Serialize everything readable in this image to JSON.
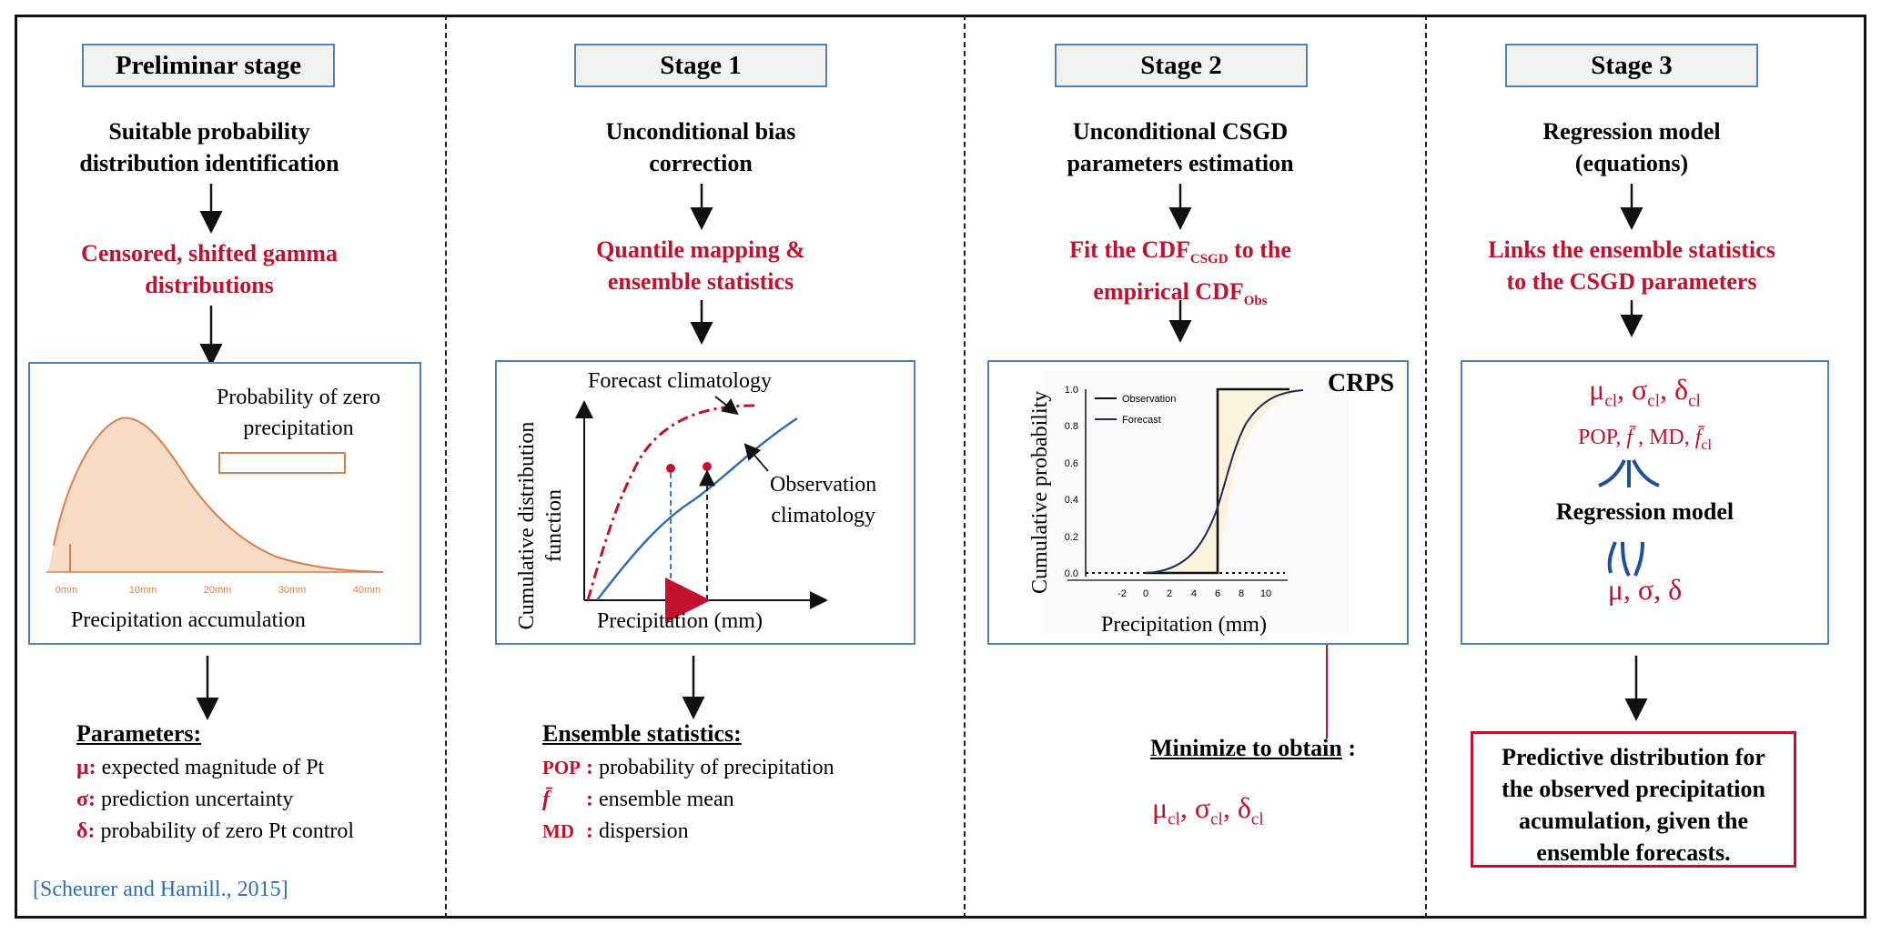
{
  "stages": [
    {
      "title": "Preliminar stage",
      "subtitle_lines": [
        "Suitable probability",
        "distribution identification"
      ],
      "method_lines": [
        "Censored, shifted gamma",
        "distributions"
      ],
      "panel": {
        "annotation_lines": [
          "Probability of zero",
          "precipitation"
        ],
        "tick_labels": [
          "0mm",
          "10mm",
          "20mm",
          "30mm",
          "40mm"
        ],
        "xlabel": "Precipitation accumulation"
      },
      "list_title": "Parameters:",
      "list": [
        {
          "key": "μ:",
          "text": "expected magnitude of Pt"
        },
        {
          "key": "σ:",
          "text": "prediction uncertainty"
        },
        {
          "key": "δ:",
          "text": "probability of zero Pt control"
        }
      ],
      "reference": "[Scheurer and Hamill., 2015]"
    },
    {
      "title": "Stage 1",
      "subtitle_lines": [
        "Unconditional bias",
        "correction"
      ],
      "method_lines": [
        "Quantile mapping &",
        "ensemble statistics"
      ],
      "panel": {
        "forecast_label": "Forecast climatology",
        "observation_label_lines": [
          "Observation",
          "climatology"
        ],
        "ylabel_lines": [
          "Cumulative distribution",
          "function"
        ],
        "xlabel": "Precipitation (mm)"
      },
      "list_title": "Ensemble statistics:",
      "list": [
        {
          "key": "POP",
          "text": "probability of precipitation"
        },
        {
          "key": "f̄",
          "text": "ensemble mean"
        },
        {
          "key": "MD",
          "text": "dispersion"
        }
      ]
    },
    {
      "title": "Stage 2",
      "subtitle_lines": [
        "Unconditional CSGD",
        "parameters estimation"
      ],
      "method_line1": {
        "pre": "Fit the CDF",
        "sub": "CSGD",
        "post": " to the"
      },
      "method_line2": {
        "pre": "empirical CDF",
        "sub": "Obs",
        "post": ""
      },
      "panel": {
        "badge": "CRPS",
        "legend": [
          "Observation",
          "Forecast"
        ],
        "y_ticks": [
          "0.0",
          "0.2",
          "0.4",
          "0.6",
          "0.8",
          "1.0"
        ],
        "x_ticks": [
          "-2",
          "0",
          "2",
          "4",
          "6",
          "8",
          "10"
        ],
        "ylabel": "Cumulative probability",
        "xlabel": "Precipitation (mm)"
      },
      "minimize_label": "Minimize to obtain",
      "minimize_colon": ":",
      "result_params": [
        "μ",
        "cl",
        "σ",
        "cl",
        "δ",
        "cl"
      ]
    },
    {
      "title": "Stage 3",
      "subtitle_lines": [
        "Regression model",
        "(equations)"
      ],
      "method_lines": [
        "Links the ensemble statistics",
        "to the CSGD parameters"
      ],
      "panel": {
        "climatological_params": [
          "μ",
          "cl",
          "σ",
          "cl",
          "δ",
          "cl"
        ],
        "stats_line": {
          "pop": "POP, ",
          "fbar": "f̄",
          "md": " , MD, ",
          "fcl": "f̄",
          "cl": "cl"
        },
        "model_label": "Regression model",
        "output_params": "μ, σ, δ"
      },
      "result_lines": [
        "Predictive distribution for",
        "the observed precipitation",
        "acumulation, given the",
        "ensemble forecasts."
      ]
    }
  ],
  "colors": {
    "accent_red": "#c0122e",
    "box_blue": "#4f81bd",
    "curve_blue": "#2e6db4",
    "gamma_fill": "#f8dcc8",
    "gamma_line": "#d9804a",
    "crps_fill": "#fbf3dc",
    "navy": "#1f2a5a"
  }
}
